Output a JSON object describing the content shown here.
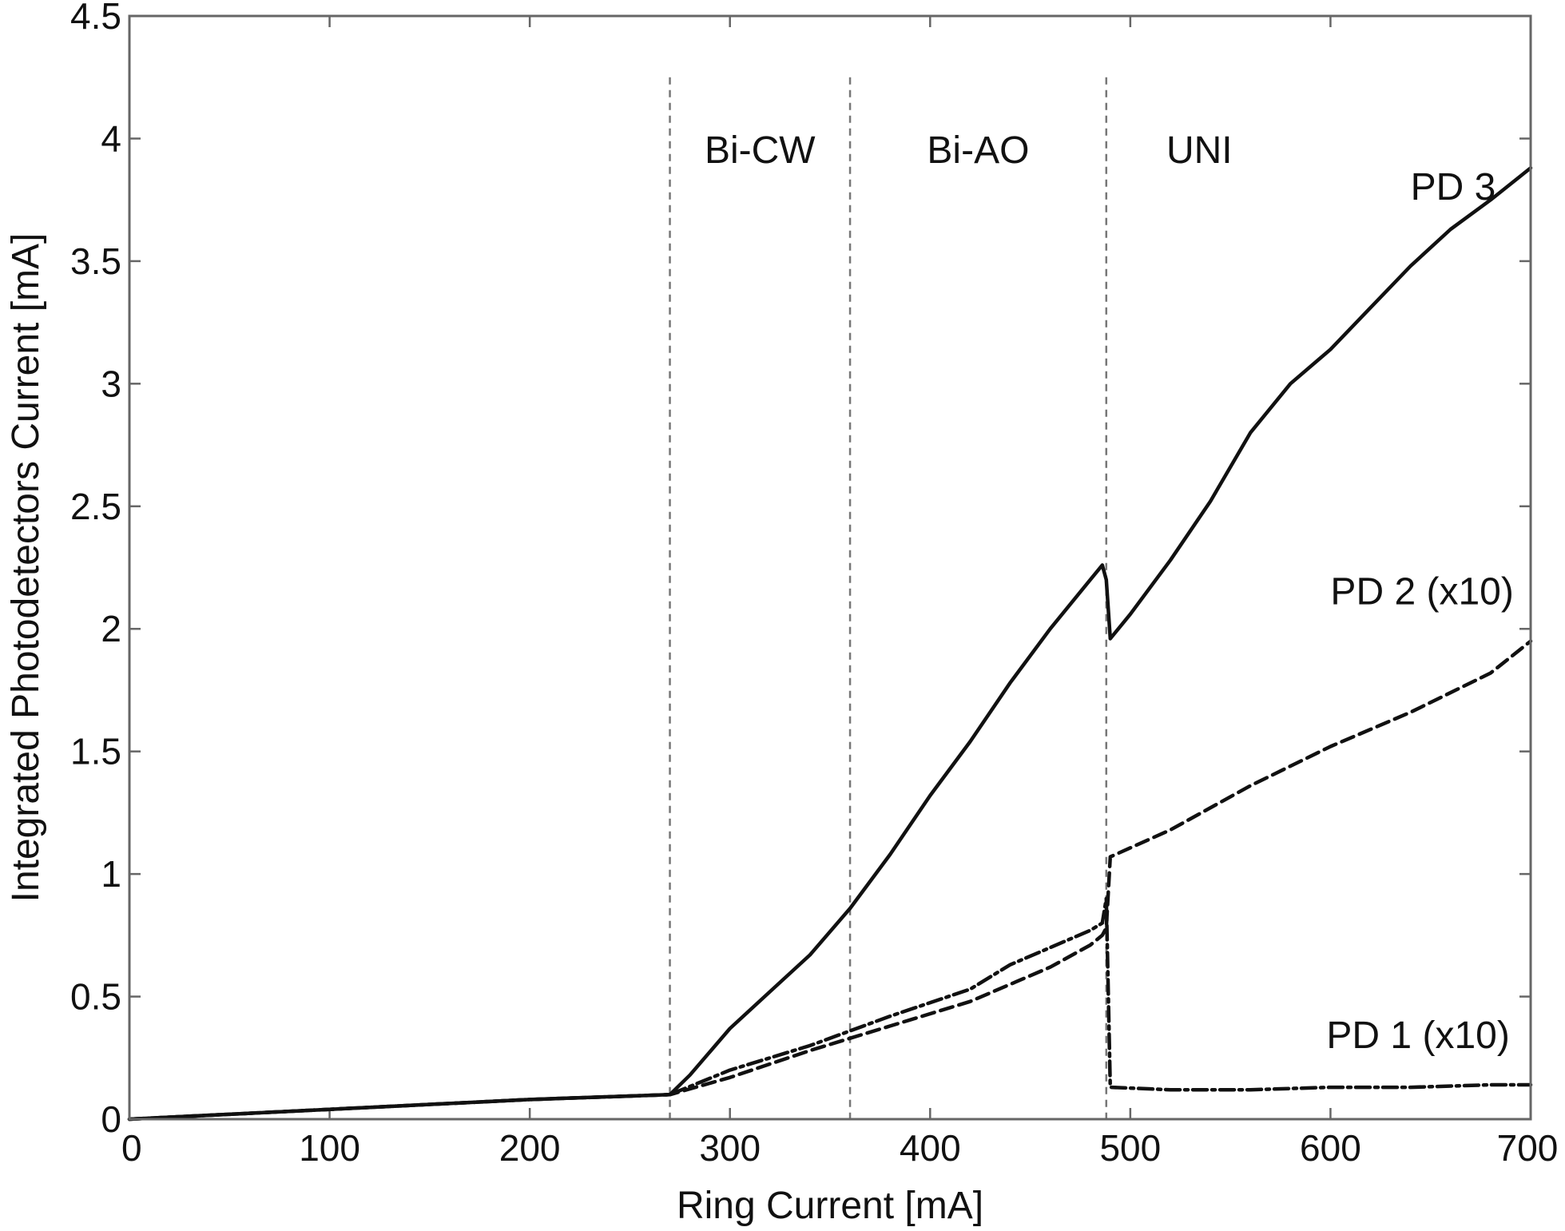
{
  "chart_data": {
    "type": "line",
    "xlabel": "Ring Current [mA]",
    "ylabel": "Integrated Photodetectors Current [mA]",
    "xlim": [
      0,
      700
    ],
    "ylim": [
      0,
      4.5
    ],
    "xticks": [
      "0",
      "100",
      "200",
      "300",
      "400",
      "500",
      "600",
      "700"
    ],
    "yticks": [
      "0",
      "0.5",
      "1",
      "1.5",
      "2",
      "2.5",
      "3",
      "3.5",
      "4",
      "4.5"
    ],
    "grid": false,
    "legend": "none",
    "regions": [
      {
        "label": "Bi-CW",
        "x_start": 270,
        "x_end": 360
      },
      {
        "label": "Bi-AO",
        "x_start": 360,
        "x_end": 488
      },
      {
        "label": "UNI",
        "x_start": 488,
        "x_end": 700
      }
    ],
    "vlines": [
      270,
      360,
      488
    ],
    "series": [
      {
        "name": "PD 3",
        "style": "solid",
        "label_at": [
          640,
          3.75
        ],
        "x": [
          0,
          100,
          200,
          270,
          280,
          300,
          320,
          340,
          360,
          380,
          400,
          420,
          440,
          460,
          480,
          486,
          488,
          490,
          500,
          520,
          540,
          560,
          580,
          600,
          620,
          640,
          660,
          680,
          700
        ],
        "y": [
          0,
          0.04,
          0.08,
          0.1,
          0.18,
          0.37,
          0.52,
          0.67,
          0.86,
          1.08,
          1.32,
          1.54,
          1.78,
          2.0,
          2.2,
          2.26,
          2.2,
          1.96,
          2.06,
          2.28,
          2.52,
          2.8,
          3.0,
          3.14,
          3.31,
          3.48,
          3.63,
          3.75,
          3.88
        ]
      },
      {
        "name": "PD 2 (x10)",
        "style": "dashed",
        "label_at": [
          600,
          2.1
        ],
        "x": [
          0,
          100,
          200,
          270,
          300,
          340,
          380,
          420,
          440,
          460,
          480,
          486,
          488,
          490,
          520,
          560,
          600,
          640,
          680,
          700
        ],
        "y": [
          0,
          0.04,
          0.08,
          0.1,
          0.17,
          0.28,
          0.38,
          0.48,
          0.55,
          0.62,
          0.71,
          0.75,
          0.78,
          1.07,
          1.18,
          1.36,
          1.52,
          1.66,
          1.82,
          1.95
        ]
      },
      {
        "name": "PD 1 (x10)",
        "style": "dashdot",
        "label_at": [
          598,
          0.29
        ],
        "x": [
          0,
          100,
          200,
          270,
          300,
          340,
          380,
          420,
          440,
          460,
          480,
          486,
          488,
          490,
          520,
          560,
          600,
          640,
          680,
          700
        ],
        "y": [
          0,
          0.04,
          0.08,
          0.1,
          0.2,
          0.3,
          0.42,
          0.53,
          0.63,
          0.7,
          0.77,
          0.8,
          0.9,
          0.13,
          0.12,
          0.12,
          0.13,
          0.13,
          0.14,
          0.14
        ]
      }
    ]
  }
}
